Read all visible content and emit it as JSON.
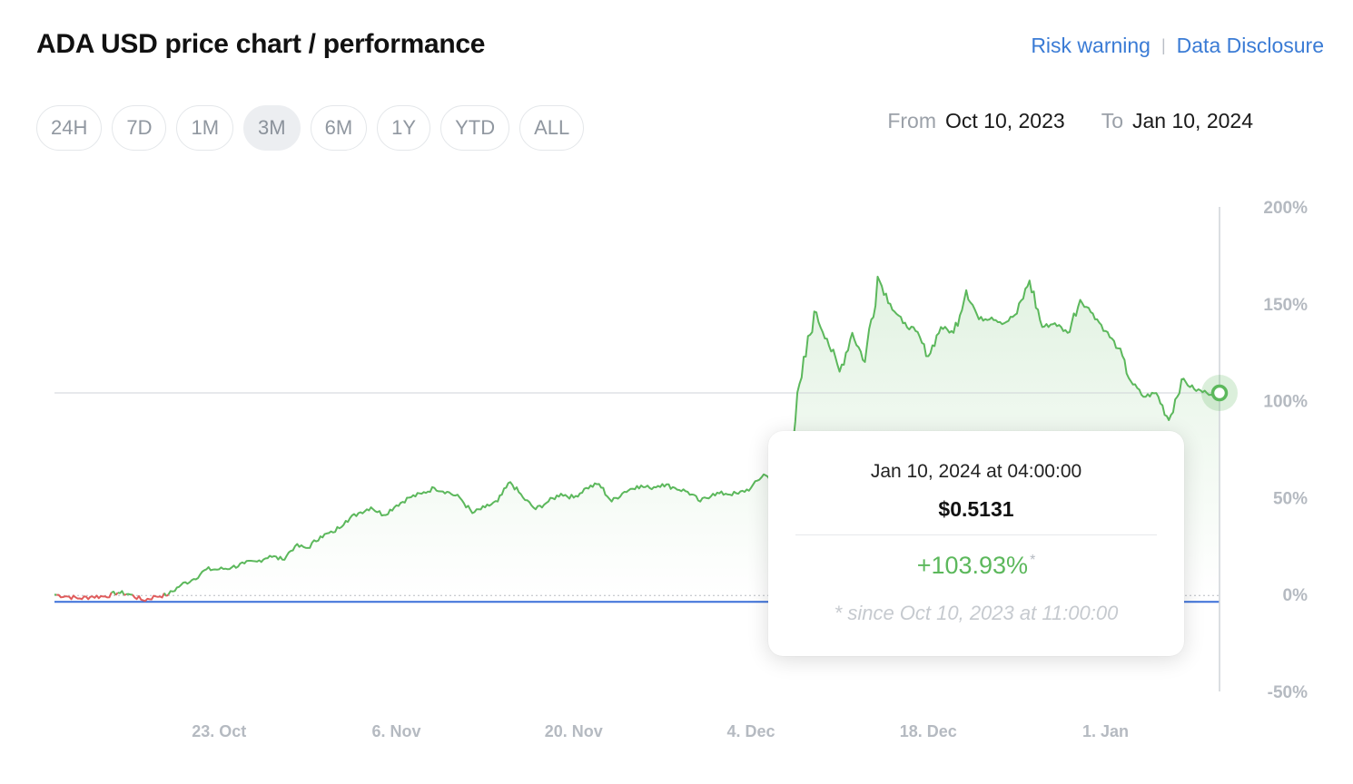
{
  "header": {
    "title": "ADA USD price chart / performance",
    "risk_warning": "Risk warning",
    "separator": "|",
    "data_disclosure": "Data Disclosure"
  },
  "ranges": [
    {
      "label": "24H",
      "active": false
    },
    {
      "label": "7D",
      "active": false
    },
    {
      "label": "1M",
      "active": false
    },
    {
      "label": "3M",
      "active": true
    },
    {
      "label": "6M",
      "active": false
    },
    {
      "label": "1Y",
      "active": false
    },
    {
      "label": "YTD",
      "active": false
    },
    {
      "label": "ALL",
      "active": false
    }
  ],
  "date_range": {
    "from_label": "From",
    "from_value": "Oct 10, 2023",
    "to_label": "To",
    "to_value": "Jan 10, 2024"
  },
  "tooltip": {
    "date": "Jan 10, 2024 at 04:00:00",
    "price": "$0.5131",
    "performance": "+103.93%",
    "asterisk": "*",
    "since": "* since Oct 10, 2023 at 11:00:00"
  },
  "colors": {
    "positive": "#5cb85c",
    "negative": "#e05c5c",
    "baseline": "#3a6fd8",
    "link": "#3a7bd5",
    "axis_text": "#b5bac1"
  },
  "chart_data": {
    "type": "area",
    "y_unit": "%",
    "ylim": [
      -50,
      200
    ],
    "y_ticks": [
      {
        "value": 200,
        "label": "200%"
      },
      {
        "value": 150,
        "label": "150%"
      },
      {
        "value": 100,
        "label": "100%"
      },
      {
        "value": 50,
        "label": "50%"
      },
      {
        "value": 0,
        "label": "0%"
      },
      {
        "value": -50,
        "label": "-50%"
      }
    ],
    "x_range": [
      "2023-10-10",
      "2024-01-10"
    ],
    "x_ticks": [
      {
        "date": "2023-10-23",
        "label": "23. Oct"
      },
      {
        "date": "2023-11-06",
        "label": "6. Nov"
      },
      {
        "date": "2023-11-20",
        "label": "20. Nov"
      },
      {
        "date": "2023-12-04",
        "label": "4. Dec"
      },
      {
        "date": "2023-12-18",
        "label": "18. Dec"
      },
      {
        "date": "2024-01-01",
        "label": "1. Jan"
      }
    ],
    "grid": false,
    "crosshair_value": 104,
    "series": [
      {
        "points": [
          [
            "2023-10-10",
            0
          ],
          [
            "2023-10-11",
            -1
          ],
          [
            "2023-10-12",
            -2
          ],
          [
            "2023-10-13",
            -1
          ],
          [
            "2023-10-14",
            -1
          ],
          [
            "2023-10-15",
            1
          ],
          [
            "2023-10-16",
            0
          ],
          [
            "2023-10-17",
            -3
          ],
          [
            "2023-10-18",
            -1
          ],
          [
            "2023-10-19",
            0
          ],
          [
            "2023-10-20",
            5
          ],
          [
            "2023-10-21",
            8
          ],
          [
            "2023-10-22",
            13
          ],
          [
            "2023-10-23",
            13
          ],
          [
            "2023-10-24",
            14
          ],
          [
            "2023-10-25",
            16
          ],
          [
            "2023-10-26",
            17
          ],
          [
            "2023-10-27",
            20
          ],
          [
            "2023-10-28",
            18
          ],
          [
            "2023-10-29",
            25
          ],
          [
            "2023-10-30",
            24
          ],
          [
            "2023-10-31",
            30
          ],
          [
            "2023-11-01",
            32
          ],
          [
            "2023-11-02",
            38
          ],
          [
            "2023-11-03",
            42
          ],
          [
            "2023-11-04",
            45
          ],
          [
            "2023-11-05",
            41
          ],
          [
            "2023-11-06",
            46
          ],
          [
            "2023-11-07",
            50
          ],
          [
            "2023-11-08",
            52
          ],
          [
            "2023-11-09",
            55
          ],
          [
            "2023-11-10",
            53
          ],
          [
            "2023-11-11",
            50
          ],
          [
            "2023-11-12",
            42
          ],
          [
            "2023-11-13",
            45
          ],
          [
            "2023-11-14",
            48
          ],
          [
            "2023-11-15",
            58
          ],
          [
            "2023-11-16",
            50
          ],
          [
            "2023-11-17",
            44
          ],
          [
            "2023-11-18",
            48
          ],
          [
            "2023-11-19",
            52
          ],
          [
            "2023-11-20",
            50
          ],
          [
            "2023-11-21",
            55
          ],
          [
            "2023-11-22",
            57
          ],
          [
            "2023-11-23",
            48
          ],
          [
            "2023-11-24",
            53
          ],
          [
            "2023-11-25",
            56
          ],
          [
            "2023-11-26",
            55
          ],
          [
            "2023-11-27",
            57
          ],
          [
            "2023-11-28",
            55
          ],
          [
            "2023-11-29",
            53
          ],
          [
            "2023-11-30",
            48
          ],
          [
            "2023-12-01",
            52
          ],
          [
            "2023-12-02",
            52
          ],
          [
            "2023-12-03",
            52
          ],
          [
            "2023-12-04",
            55
          ],
          [
            "2023-12-05",
            62
          ],
          [
            "2023-12-06",
            58
          ],
          [
            "2023-12-07",
            70
          ],
          [
            "2023-12-08",
            112
          ],
          [
            "2023-12-09",
            146
          ],
          [
            "2023-12-10",
            132
          ],
          [
            "2023-12-11",
            115
          ],
          [
            "2023-12-12",
            135
          ],
          [
            "2023-12-13",
            120
          ],
          [
            "2023-12-14",
            164
          ],
          [
            "2023-12-15",
            150
          ],
          [
            "2023-12-16",
            140
          ],
          [
            "2023-12-17",
            136
          ],
          [
            "2023-12-18",
            123
          ],
          [
            "2023-12-19",
            138
          ],
          [
            "2023-12-20",
            135
          ],
          [
            "2023-12-21",
            157
          ],
          [
            "2023-12-22",
            142
          ],
          [
            "2023-12-23",
            143
          ],
          [
            "2023-12-24",
            140
          ],
          [
            "2023-12-25",
            145
          ],
          [
            "2023-12-26",
            162
          ],
          [
            "2023-12-27",
            138
          ],
          [
            "2023-12-28",
            140
          ],
          [
            "2023-12-29",
            135
          ],
          [
            "2023-12-30",
            152
          ],
          [
            "2023-12-31",
            145
          ],
          [
            "2024-01-01",
            136
          ],
          [
            "2024-01-02",
            127
          ],
          [
            "2024-01-03",
            110
          ],
          [
            "2024-01-04",
            102
          ],
          [
            "2024-01-05",
            104
          ],
          [
            "2024-01-06",
            90
          ],
          [
            "2024-01-07",
            111
          ],
          [
            "2024-01-08",
            106
          ],
          [
            "2024-01-09",
            104
          ],
          [
            "2024-01-10",
            104
          ]
        ]
      }
    ]
  }
}
